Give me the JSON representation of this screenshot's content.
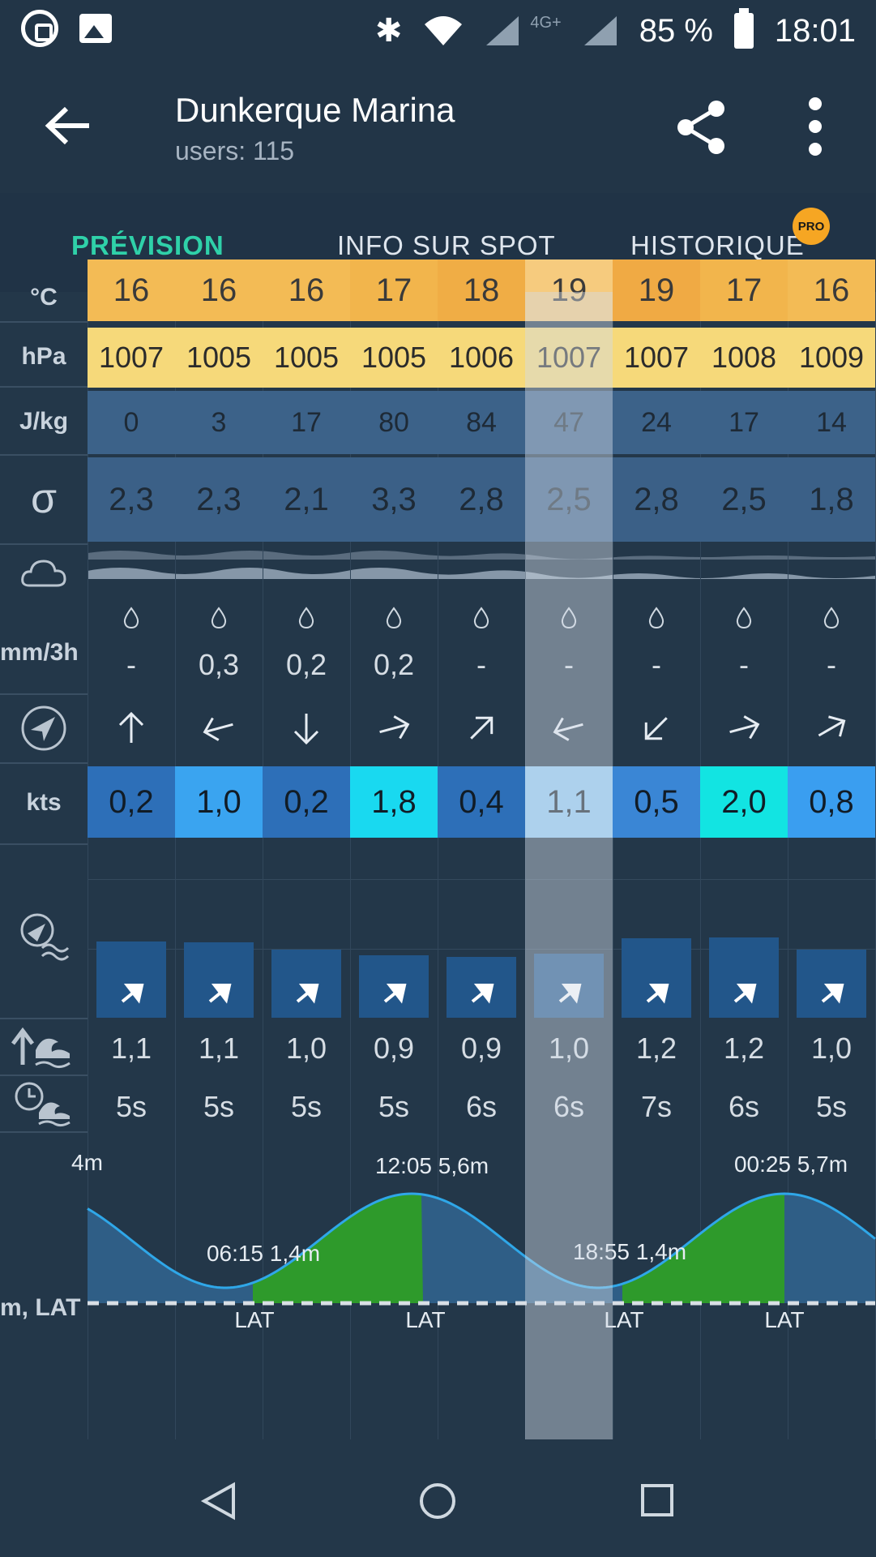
{
  "status_bar": {
    "battery": "85 %",
    "time": "18:01",
    "network": "4G+"
  },
  "header": {
    "title": "Dunkerque Marina",
    "subtitle": "users: 115"
  },
  "tabs": [
    {
      "label": "PRÉVISION",
      "active": true
    },
    {
      "label": "INFO SUR SPOT",
      "active": false
    },
    {
      "label": "HISTORIQUE",
      "active": false,
      "badge": "PRO"
    }
  ],
  "units": {
    "temperature": "°C",
    "pressure": "hPa",
    "cape": "J/kg",
    "sigma": "σ",
    "precip": "mm/3h",
    "current_speed": "kts",
    "tide": "m, LAT"
  },
  "rows": {
    "temperature": [
      "16",
      "16",
      "16",
      "17",
      "18",
      "19",
      "19",
      "17",
      "16"
    ],
    "pressure": [
      "1007",
      "1005",
      "1005",
      "1005",
      "1006",
      "1007",
      "1007",
      "1008",
      "1009"
    ],
    "cape": [
      "0",
      "3",
      "17",
      "80",
      "84",
      "47",
      "24",
      "17",
      "14"
    ],
    "sigma": [
      "2,3",
      "2,3",
      "2,1",
      "3,3",
      "2,8",
      "2,5",
      "2,8",
      "2,5",
      "1,8"
    ],
    "precip": [
      "-",
      "0,3",
      "0,2",
      "0,2",
      "-",
      "-",
      "-",
      "-",
      "-"
    ],
    "current_dir_deg": [
      0,
      255,
      180,
      75,
      45,
      255,
      225,
      75,
      60
    ],
    "current_speed": [
      "0,2",
      "1,0",
      "0,2",
      "1,8",
      "0,4",
      "1,1",
      "0,5",
      "2,0",
      "0,8"
    ],
    "wave_height": [
      "1,1",
      "1,1",
      "1,0",
      "0,9",
      "0,9",
      "1,0",
      "1,2",
      "1,2",
      "1,0"
    ],
    "wave_period": [
      "5s",
      "5s",
      "5s",
      "5s",
      "6s",
      "6s",
      "7s",
      "6s",
      "5s"
    ]
  },
  "colors": {
    "temperature": [
      "#f3bb55",
      "#f3bb55",
      "#f3bb55",
      "#f2b54c",
      "#f0ad45",
      "#f6cb7e",
      "#f0aa44",
      "#f2b54c",
      "#f3bb55"
    ],
    "pressure": "#f6d97a",
    "cape": "#3c6289",
    "sigma": "#3b6087",
    "current_speed": [
      "#2d6fb8",
      "#3aa4f0",
      "#2d6fb8",
      "#19d9f0",
      "#2d6fb8",
      "#8ec8f3",
      "#3a86d5",
      "#12e4e2",
      "#3a9ef0"
    ],
    "tide_water": "#2f5e86",
    "tide_rising": "#2e9a2b"
  },
  "tide": {
    "events": [
      {
        "label": "4m"
      },
      {
        "label": "06:15 1,4m"
      },
      {
        "label": "12:05 5,6m"
      },
      {
        "label": "18:55 1,4m"
      },
      {
        "label": "00:25 5,7m"
      }
    ],
    "lat_label": "LAT"
  },
  "swell_heights_rel": [
    0.98,
    0.97,
    0.88,
    0.8,
    0.78,
    0.82,
    1.02,
    1.03,
    0.88
  ]
}
